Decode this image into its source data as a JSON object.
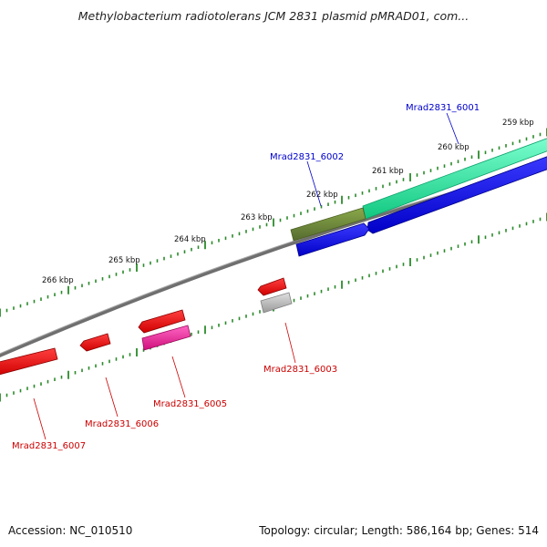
{
  "title": "Methylobacterium radiotolerans JCM 2831 plasmid pMRAD01, com...",
  "footer": {
    "accession_label": "Accession:",
    "accession": "NC_010510",
    "topology_label": "Topology:",
    "topology": "circular",
    "length_label": "Length:",
    "length": "586,164 bp",
    "genes_label": "Genes:",
    "genes": "514"
  },
  "ticks": [
    {
      "label": "259 kbp",
      "kbp": 259
    },
    {
      "label": "260 kbp",
      "kbp": 260
    },
    {
      "label": "261 kbp",
      "kbp": 261
    },
    {
      "label": "262 kbp",
      "kbp": 262
    },
    {
      "label": "263 kbp",
      "kbp": 263
    },
    {
      "label": "264 kbp",
      "kbp": 264
    },
    {
      "label": "265 kbp",
      "kbp": 265
    },
    {
      "label": "266 kbp",
      "kbp": 266
    }
  ],
  "genes": [
    {
      "id": "Mrad2831_6001",
      "strand": "forward",
      "color": "#0000cc"
    },
    {
      "id": "Mrad2831_6002",
      "strand": "forward",
      "color": "#0000cc"
    },
    {
      "id": "Mrad2831_6003",
      "strand": "reverse",
      "color": "#cc0000"
    },
    {
      "id": "Mrad2831_6005",
      "strand": "reverse",
      "color": "#cc0000"
    },
    {
      "id": "Mrad2831_6006",
      "strand": "reverse",
      "color": "#cc0000"
    },
    {
      "id": "Mrad2831_6007",
      "strand": "reverse",
      "color": "#cc0000"
    }
  ],
  "colors": {
    "backbone": "#7a7a7a",
    "tick": "#2a8a2a",
    "forward_gene": "#0000ee",
    "reverse_gene": "#ee0000",
    "cog_green": "#2ee8a0",
    "cog_olive": "#6b8e23",
    "cog_pink": "#ee1a9a",
    "cog_grey": "#b8b8b8"
  }
}
